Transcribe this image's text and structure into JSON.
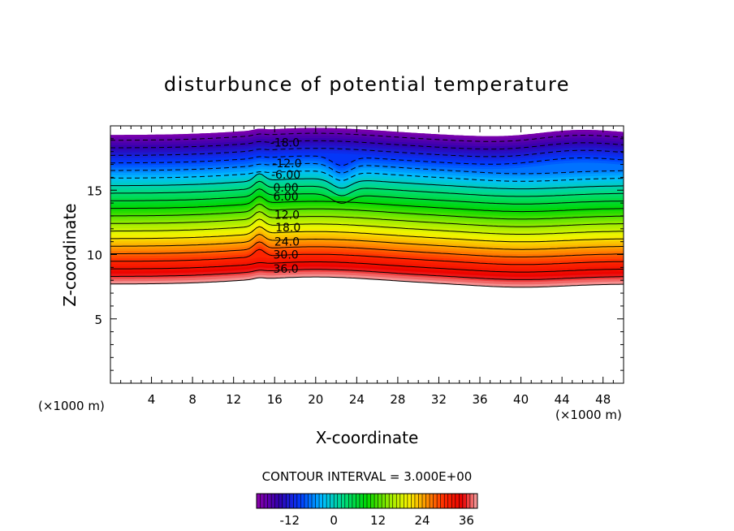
{
  "chart_data": {
    "type": "contour",
    "title": "disturbunce of potential temperature",
    "xlabel": "X-coordinate",
    "ylabel": "Z-coordinate",
    "x_unit": "(×1000 m)",
    "y_unit": "(×1000 m)",
    "xlim": [
      0,
      50
    ],
    "ylim": [
      0,
      20
    ],
    "x_ticks": [
      4,
      8,
      12,
      16,
      20,
      24,
      28,
      32,
      36,
      40,
      44,
      48
    ],
    "y_ticks": [
      5,
      10,
      15
    ],
    "x_tick_labels": [
      "4",
      "8",
      "12",
      "16",
      "20",
      "24",
      "28",
      "32",
      "36",
      "40",
      "44",
      "48"
    ],
    "y_tick_labels": [
      "5",
      "10",
      "15"
    ],
    "contour_interval_text": "CONTOUR INTERVAL = 3.000E+00",
    "contour_interval": 3.0,
    "levels": [
      -18,
      -15,
      -12,
      -9,
      -6,
      -3,
      0,
      3,
      6,
      9,
      12,
      15,
      18,
      21,
      24,
      27,
      30,
      33,
      36,
      39
    ],
    "contour_labels": [
      {
        "text": "-18.0",
        "value": -18,
        "x": 17.0,
        "z": 18.7
      },
      {
        "text": "-12.0",
        "value": -12,
        "x": 17.2,
        "z": 17.1
      },
      {
        "text": "-6.00",
        "value": -6,
        "x": 17.1,
        "z": 16.2
      },
      {
        "text": "0.00",
        "value": 0,
        "x": 17.1,
        "z": 15.2
      },
      {
        "text": "6.00",
        "value": 6,
        "x": 17.1,
        "z": 14.5
      },
      {
        "text": "12.0",
        "value": 12,
        "x": 17.2,
        "z": 13.1
      },
      {
        "text": "18.0",
        "value": 18,
        "x": 17.3,
        "z": 12.1
      },
      {
        "text": "24.0",
        "value": 24,
        "x": 17.2,
        "z": 11.0
      },
      {
        "text": "30.0",
        "value": 30,
        "x": 17.1,
        "z": 10.0
      },
      {
        "text": "36.0",
        "value": 36,
        "x": 17.1,
        "z": 8.9
      }
    ],
    "colorbar": {
      "min": -21,
      "max": 39,
      "tick_values": [
        -12,
        0,
        12,
        24,
        36
      ],
      "tick_labels": [
        "-12",
        "0",
        "12",
        "24",
        "36"
      ]
    },
    "grid": false,
    "legend": "colorbar-bottom"
  }
}
